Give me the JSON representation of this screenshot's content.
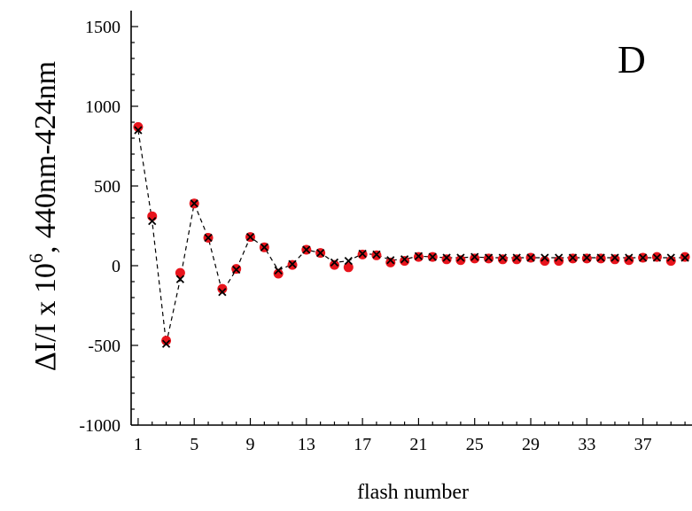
{
  "chart_data": {
    "type": "scatter",
    "panel_label": "D",
    "xlabel": "flash number",
    "ylabel_main": "ΔI/I x 10",
    "ylabel_sup": "6",
    "ylabel_rest": ", 440nm-424nm",
    "xlim": [
      0.5,
      40.5
    ],
    "ylim": [
      -1000,
      1600
    ],
    "x_ticks": [
      1,
      5,
      9,
      13,
      17,
      21,
      25,
      29,
      33,
      37
    ],
    "x_tick_labels": [
      "1",
      "5",
      "9",
      "13",
      "17",
      "21",
      "25",
      "29",
      "33",
      "37"
    ],
    "y_ticks": [
      -1000,
      -500,
      0,
      500,
      1000,
      1500
    ],
    "y_tick_labels": [
      "-1000",
      "-500",
      "0",
      "500",
      "1000",
      "1500"
    ],
    "grid": false,
    "series": [
      {
        "marker": "circle",
        "color": "#e8141c",
        "x": [
          1,
          2,
          3,
          4,
          5,
          6,
          7,
          8,
          9,
          10,
          11,
          12,
          13,
          14,
          15,
          16,
          17,
          18,
          19,
          20,
          21,
          22,
          23,
          24,
          25,
          26,
          27,
          28,
          29,
          30,
          31,
          32,
          33,
          34,
          35,
          36,
          37,
          38,
          39,
          40
        ],
        "values": [
          870,
          310,
          -470,
          -45,
          390,
          175,
          -145,
          -20,
          180,
          115,
          -50,
          5,
          100,
          80,
          5,
          -10,
          70,
          65,
          20,
          30,
          55,
          55,
          40,
          35,
          45,
          45,
          40,
          40,
          50,
          30,
          30,
          45,
          45,
          45,
          40,
          35,
          50,
          55,
          30,
          55
        ]
      },
      {
        "marker": "x",
        "color": "#000000",
        "line": "dashed",
        "x": [
          1,
          2,
          3,
          4,
          5,
          6,
          7,
          8,
          9,
          10,
          11,
          12,
          13,
          14,
          15,
          16,
          17,
          18,
          19,
          20,
          21,
          22,
          23,
          24,
          25,
          26,
          27,
          28,
          29,
          30,
          31,
          32,
          33,
          34,
          35,
          36,
          37,
          38,
          39,
          40
        ],
        "values": [
          850,
          280,
          -490,
          -85,
          390,
          175,
          -165,
          -25,
          180,
          115,
          -30,
          10,
          100,
          80,
          20,
          30,
          75,
          70,
          35,
          40,
          60,
          55,
          50,
          50,
          55,
          50,
          50,
          50,
          50,
          50,
          50,
          50,
          50,
          50,
          50,
          50,
          50,
          50,
          50,
          50
        ]
      }
    ]
  }
}
